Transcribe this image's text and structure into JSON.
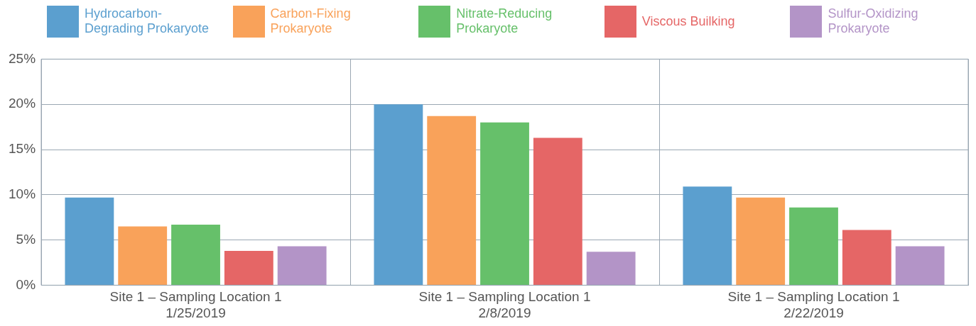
{
  "chart_data": {
    "type": "bar",
    "categories": [
      "Site 1 – Sampling Location 1\n1/25/2019",
      "Site 1 – Sampling Location 1\n2/8/2019",
      "Site 1 – Sampling Location 1\n2/22/2019"
    ],
    "series": [
      {
        "name": "Hydrocarbon-Degrading Prokaryote",
        "color": "#5b9fcf",
        "values": [
          9.7,
          20.0,
          10.9
        ]
      },
      {
        "name": "Carbon-Fixing Prokaryote",
        "color": "#f9a25a",
        "values": [
          6.5,
          18.7,
          9.7
        ]
      },
      {
        "name": "Nitrate-Reducing Prokaryote",
        "color": "#66c06a",
        "values": [
          6.7,
          18.0,
          8.6
        ]
      },
      {
        "name": "Viscous Builking",
        "color": "#e56666",
        "values": [
          3.8,
          16.3,
          6.1
        ]
      },
      {
        "name": "Sulfur-Oxidizing Prokaryote",
        "color": "#b394c7",
        "values": [
          4.3,
          3.7,
          4.3
        ]
      }
    ],
    "ylim": [
      0,
      25
    ],
    "yticks": [
      {
        "value": 0,
        "label": "0%"
      },
      {
        "value": 5,
        "label": "5%"
      },
      {
        "value": 10,
        "label": "10%"
      },
      {
        "value": 15,
        "label": "15%"
      },
      {
        "value": 20,
        "label": "20%"
      },
      {
        "value": 25,
        "label": "25%"
      }
    ],
    "grid": true,
    "legend": "top"
  }
}
